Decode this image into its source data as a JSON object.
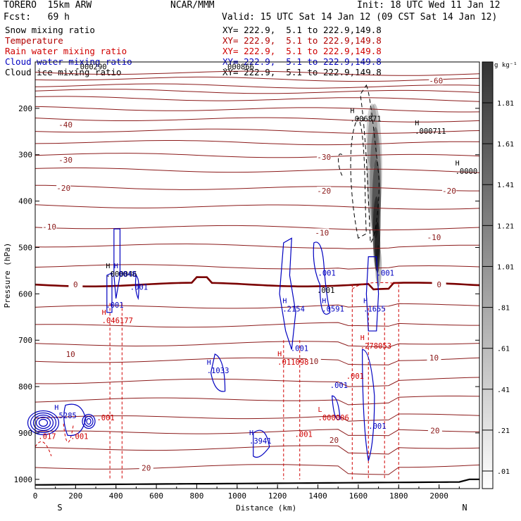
{
  "header": {
    "model": "TORERO  15km ARW",
    "org": "NCAR/MMM",
    "init": "Init: 18 UTC Wed 11 Jan 12",
    "fcst": "Fcst:   69 h",
    "valid": "Valid: 15 UTC Sat 14 Jan 12 (09 CST Sat 14 Jan 12)"
  },
  "legend": [
    {
      "name": "Snow mixing ratio",
      "color": "#000000",
      "xy": "XY= 222.9,  5.1 to 222.9,149.8"
    },
    {
      "name": "Temperature",
      "color": "#b00000",
      "xy": "XY= 222.9,  5.1 to 222.9,149.8"
    },
    {
      "name": "Rain water mixing ratio",
      "color": "#d00000",
      "xy": "XY= 222.9,  5.1 to 222.9,149.8"
    },
    {
      "name": "Cloud water mixing ratio",
      "color": "#0000c0",
      "xy": "XY= 222.9,  5.1 to 222.9,149.8"
    },
    {
      "name": "Cloud ice mixing ratio",
      "color": "#000000",
      "xy": "XY= 222.9,  5.1 to 222.9,149.8"
    }
  ],
  "overlap_labels": {
    "upper_left": ".000290",
    "upper_mid": ".000866"
  },
  "chart_data": {
    "type": "cross-section",
    "xlabel": "Distance (km)",
    "ylabel": "Pressure (hPa)",
    "xlim": [
      0,
      2200
    ],
    "ylim": [
      1020,
      100
    ],
    "x_ticks": [
      0,
      200,
      400,
      600,
      800,
      1000,
      1200,
      1400,
      1600,
      1800,
      2000
    ],
    "y_ticks": [
      200,
      300,
      400,
      500,
      600,
      700,
      800,
      900,
      1000
    ],
    "x_end_labels": {
      "left": "S",
      "right": "N"
    },
    "colorbar": {
      "unit": "g kg⁻¹",
      "labels": [
        "1.81",
        "1.61",
        "1.41",
        "1.21",
        "1.01",
        ".81",
        ".61",
        ".41",
        ".21",
        ".01"
      ]
    },
    "temperature_isotherms": [
      -60,
      -50,
      -40,
      -30,
      -20,
      -10,
      0,
      10,
      20
    ],
    "temperature_labels": [
      {
        "text": "-60",
        "x": 1985,
        "p": 140
      },
      {
        "text": "-40",
        "x": 150,
        "p": 235
      },
      {
        "text": "-30",
        "x": 150,
        "p": 311
      },
      {
        "text": "-30",
        "x": 1430,
        "p": 305
      },
      {
        "text": "-20",
        "x": 140,
        "p": 372
      },
      {
        "text": "-20",
        "x": 1430,
        "p": 378
      },
      {
        "text": "-20",
        "x": 2050,
        "p": 378
      },
      {
        "text": "-10",
        "x": 70,
        "p": 455
      },
      {
        "text": "-10",
        "x": 1420,
        "p": 468
      },
      {
        "text": "-10",
        "x": 1975,
        "p": 478
      },
      {
        "text": "0",
        "x": 200,
        "p": 580
      },
      {
        "text": "0",
        "x": 2000,
        "p": 580
      },
      {
        "text": "10",
        "x": 175,
        "p": 730
      },
      {
        "text": "10",
        "x": 1380,
        "p": 745
      },
      {
        "text": "10",
        "x": 1975,
        "p": 738
      },
      {
        "text": "20",
        "x": 550,
        "p": 975
      },
      {
        "text": "20",
        "x": 1480,
        "p": 915
      },
      {
        "text": "20",
        "x": 1980,
        "p": 895
      }
    ],
    "extrema_labels": [
      {
        "marker": "H",
        "value": ".006871",
        "x": 1560,
        "p": 225,
        "color": "#000000"
      },
      {
        "marker": "H",
        "value": ".000711",
        "x": 1880,
        "p": 252,
        "color": "#000000"
      },
      {
        "marker": "H",
        "value": ".0000",
        "x": 2080,
        "p": 338,
        "color": "#000000"
      },
      {
        "marker": "H",
        "value": ".000046",
        "x": 350,
        "p": 560,
        "color": "#000000"
      },
      {
        "marker": "H",
        "value": ".0048",
        "x": 390,
        "p": 560,
        "color": "#0000c0"
      },
      {
        "marker": "",
        "value": ".001",
        "x": 470,
        "p": 588,
        "color": "#0000c0"
      },
      {
        "marker": "",
        "value": ".001",
        "x": 350,
        "p": 627,
        "color": "#0000c0"
      },
      {
        "marker": "H",
        "value": ".046177",
        "x": 330,
        "p": 660,
        "color": "#d00000"
      },
      {
        "marker": "",
        "value": ".001",
        "x": 1400,
        "p": 558,
        "color": "#0000c0"
      },
      {
        "marker": "",
        "value": ".001",
        "x": 1690,
        "p": 558,
        "color": "#0000c0"
      },
      {
        "marker": "",
        "value": ".001",
        "x": 1395,
        "p": 595,
        "color": "#000000"
      },
      {
        "marker": "H",
        "value": ".2154",
        "x": 1225,
        "p": 635,
        "color": "#0000c0"
      },
      {
        "marker": "H",
        "value": ".0591",
        "x": 1420,
        "p": 635,
        "color": "#0000c0"
      },
      {
        "marker": "H",
        "value": ".1655",
        "x": 1625,
        "p": 635,
        "color": "#0000c0"
      },
      {
        "marker": "",
        "value": ".001",
        "x": 1265,
        "p": 720,
        "color": "#0000c0"
      },
      {
        "marker": "H",
        "value": ".278053",
        "x": 1610,
        "p": 715,
        "color": "#d00000"
      },
      {
        "marker": "H",
        "value": ".011098",
        "x": 1200,
        "p": 750,
        "color": "#d00000"
      },
      {
        "marker": "H",
        "value": ".1033",
        "x": 850,
        "p": 768,
        "color": "#0000c0"
      },
      {
        "marker": "",
        "value": ".001",
        "x": 1540,
        "p": 780,
        "color": "#d00000"
      },
      {
        "marker": "",
        "value": ".001",
        "x": 1460,
        "p": 800,
        "color": "#0000c0"
      },
      {
        "marker": "H",
        "value": ".5285",
        "x": 95,
        "p": 865,
        "color": "#0000c0"
      },
      {
        "marker": "",
        "value": ".001",
        "x": 305,
        "p": 870,
        "color": "#d00000"
      },
      {
        "marker": "L",
        "value": ".000006",
        "x": 1400,
        "p": 870,
        "color": "#d00000"
      },
      {
        "marker": "",
        "value": ".001",
        "x": 1650,
        "p": 888,
        "color": "#0000c0"
      },
      {
        "marker": "",
        "value": ".001",
        "x": 1285,
        "p": 905,
        "color": "#d00000"
      },
      {
        "marker": "",
        "value": ".017",
        "x": 15,
        "p": 910,
        "color": "#d00000"
      },
      {
        "marker": "",
        "value": ".001",
        "x": 175,
        "p": 910,
        "color": "#d00000"
      },
      {
        "marker": "H",
        "value": ".3941",
        "x": 1060,
        "p": 920,
        "color": "#0000c0"
      }
    ]
  }
}
